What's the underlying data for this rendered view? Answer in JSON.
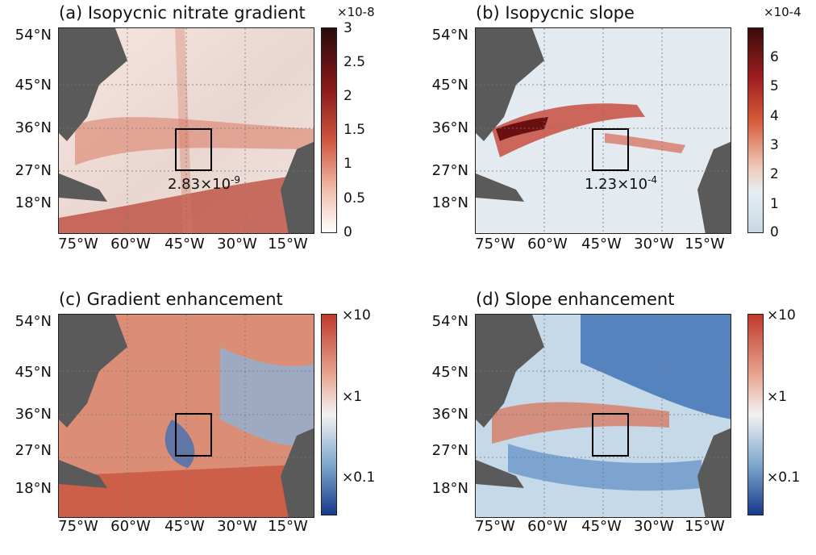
{
  "panels": [
    {
      "id": "a",
      "title": "(a) Isopycnic nitrate gradient",
      "colorbar": {
        "exponent": "×10-8",
        "ticks": [
          "3",
          "2.5",
          "2",
          "1.5",
          "1",
          "0.5",
          "0"
        ],
        "colors": [
          "#2a0a0a",
          "#8b1a1a",
          "#d0553f",
          "#f2c0ae",
          "#ffffff"
        ]
      },
      "annotation": {
        "base": "2.83×10",
        "exp": "-9"
      }
    },
    {
      "id": "b",
      "title": "(b) Isopycnic slope",
      "colorbar": {
        "exponent": "×10-4",
        "ticks": [
          "6",
          "5",
          "4",
          "3",
          "2",
          "1",
          "0"
        ],
        "colors": [
          "#3a0b0b",
          "#a02020",
          "#d65a3a",
          "#f0c8b8",
          "#e6eef3",
          "#c8d8e2"
        ]
      },
      "annotation": {
        "base": "1.23×10",
        "exp": "-4"
      }
    },
    {
      "id": "c",
      "title": "(c) Gradient enhancement",
      "colorbar": {
        "ticks": [
          "×10",
          "×1",
          "×0.1"
        ],
        "colors": [
          "#c0392b",
          "#e8a58f",
          "#f2f2f2",
          "#7fa8cf",
          "#163a8a"
        ]
      }
    },
    {
      "id": "d",
      "title": "(d) Slope enhancement",
      "colorbar": {
        "ticks": [
          "×10",
          "×1",
          "×0.1"
        ],
        "colors": [
          "#c0392b",
          "#e8a58f",
          "#f2f2f2",
          "#7fa8cf",
          "#163a8a"
        ]
      }
    }
  ],
  "lat_labels": [
    "54°N",
    "45°N",
    "36°N",
    "27°N",
    "18°N"
  ],
  "lon_labels": [
    "75°W",
    "60°W",
    "45°W",
    "30°W",
    "15°W"
  ],
  "colors": {
    "land": "#5a5a5a",
    "box": "#000000"
  }
}
